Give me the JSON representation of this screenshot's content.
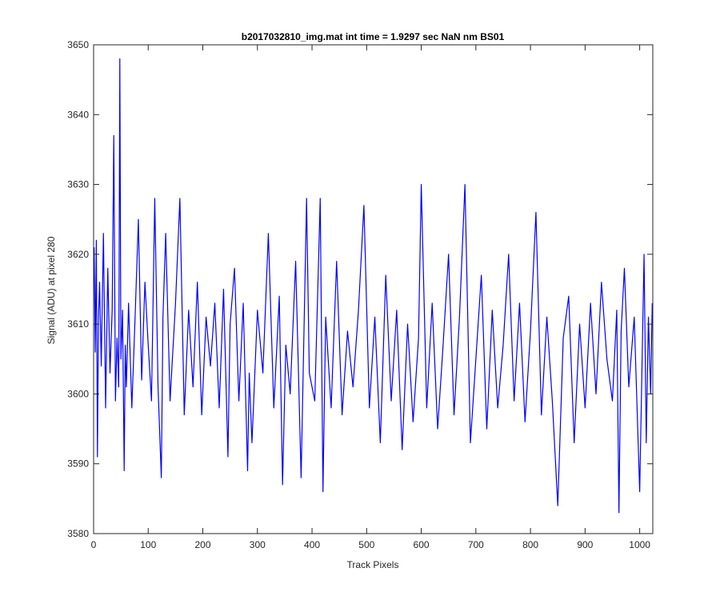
{
  "chart_data": {
    "type": "line",
    "title": "b2017032810_img.mat int time = 1.9297 sec  NaN nm BS01",
    "xlabel": "Track Pixels",
    "ylabel": "Signal (ADU) at pixel 280",
    "xlim": [
      0,
      1024
    ],
    "ylim": [
      3580,
      3650
    ],
    "xticks": [
      0,
      100,
      200,
      300,
      400,
      500,
      600,
      700,
      800,
      900,
      1000
    ],
    "yticks": [
      3580,
      3590,
      3600,
      3610,
      3620,
      3630,
      3640,
      3650
    ],
    "grid": false,
    "line_color": "#0000ff",
    "series": [
      {
        "x": [
          1,
          3,
          5,
          7,
          9,
          11,
          14,
          18,
          22,
          26,
          30,
          34,
          37,
          40,
          43,
          46,
          48,
          50,
          53,
          56,
          58,
          60,
          64,
          70,
          76,
          82,
          88,
          94,
          100,
          106,
          112,
          118,
          124,
          127,
          132,
          140,
          150,
          158,
          166,
          174,
          182,
          190,
          198,
          206,
          214,
          222,
          230,
          238,
          246,
          250,
          258,
          266,
          274,
          282,
          285,
          290,
          300,
          310,
          320,
          330,
          340,
          346,
          352,
          360,
          370,
          380,
          390,
          395,
          405,
          415,
          420,
          425,
          435,
          445,
          455,
          465,
          475,
          485,
          495,
          505,
          515,
          525,
          535,
          545,
          555,
          565,
          575,
          585,
          595,
          600,
          610,
          620,
          630,
          640,
          650,
          660,
          670,
          680,
          690,
          700,
          710,
          720,
          730,
          740,
          750,
          760,
          770,
          780,
          790,
          800,
          810,
          820,
          830,
          840,
          850,
          860,
          870,
          880,
          890,
          900,
          910,
          920,
          930,
          940,
          950,
          958,
          962,
          966,
          972,
          980,
          990,
          1000,
          1008,
          1012,
          1016,
          1020,
          1023
        ],
        "y": [
          3621,
          3606,
          3622,
          3591,
          3611,
          3616,
          3604,
          3623,
          3598,
          3618,
          3603,
          3612,
          3637,
          3599,
          3608,
          3601,
          3648,
          3605,
          3612,
          3589,
          3607,
          3601,
          3613,
          3598,
          3611,
          3625,
          3602,
          3616,
          3607,
          3599,
          3628,
          3601,
          3588,
          3611,
          3623,
          3599,
          3613,
          3628,
          3597,
          3612,
          3601,
          3616,
          3597,
          3611,
          3604,
          3613,
          3598,
          3615,
          3591,
          3610,
          3618,
          3599,
          3613,
          3589,
          3603,
          3593,
          3612,
          3603,
          3623,
          3598,
          3614,
          3587,
          3607,
          3600,
          3619,
          3588,
          3628,
          3603,
          3599,
          3628,
          3586,
          3611,
          3598,
          3619,
          3597,
          3609,
          3601,
          3612,
          3627,
          3598,
          3611,
          3593,
          3617,
          3599,
          3612,
          3592,
          3610,
          3596,
          3608,
          3630,
          3598,
          3613,
          3595,
          3607,
          3620,
          3597,
          3611,
          3630,
          3593,
          3605,
          3617,
          3595,
          3612,
          3598,
          3607,
          3620,
          3599,
          3613,
          3596,
          3609,
          3626,
          3597,
          3611,
          3599,
          3584,
          3608,
          3614,
          3593,
          3610,
          3598,
          3613,
          3600,
          3616,
          3605,
          3599,
          3612,
          3583,
          3609,
          3618,
          3601,
          3611,
          3586,
          3620,
          3593,
          3611,
          3600,
          3613
        ]
      }
    ]
  }
}
